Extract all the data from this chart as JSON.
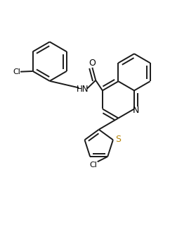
{
  "bg_color": "#ffffff",
  "bond_color": "#1a1a1a",
  "s_color": "#b8860b",
  "line_width": 1.4,
  "figsize": [
    2.79,
    3.19
  ],
  "dpi": 100,
  "xlim": [
    -0.1,
    1.05
  ],
  "ylim": [
    -0.05,
    1.05
  ]
}
